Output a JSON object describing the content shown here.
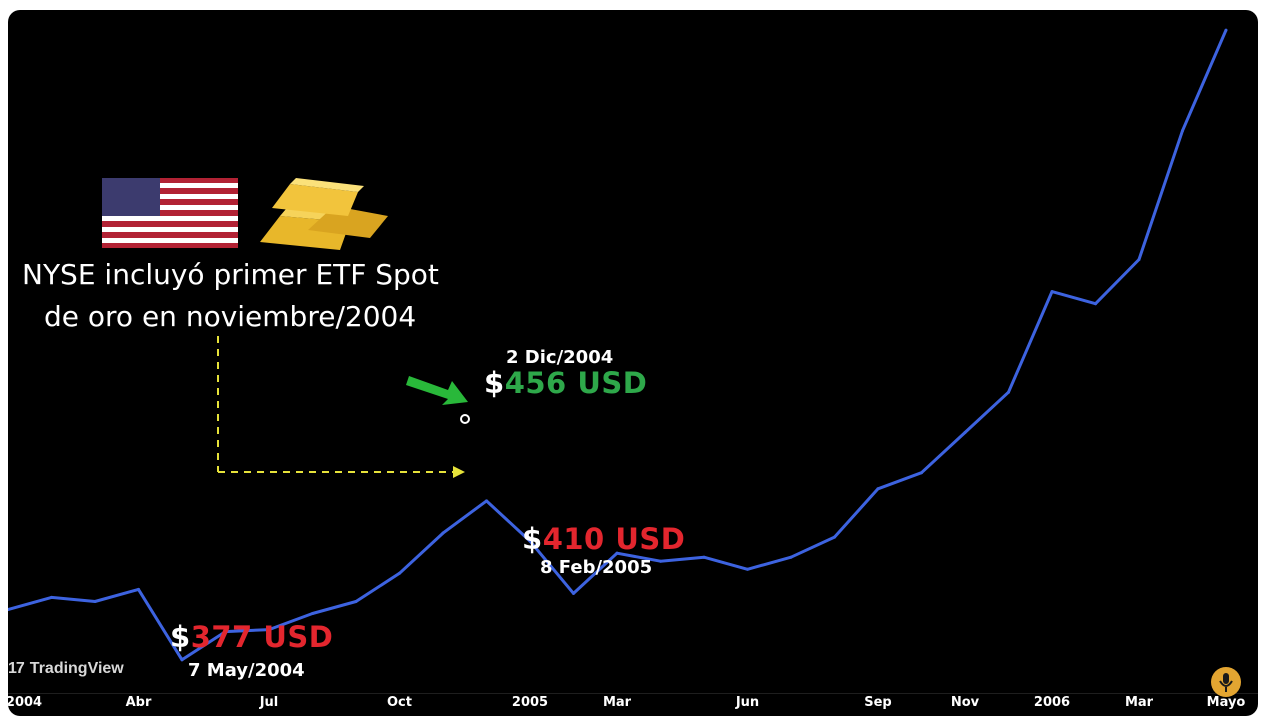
{
  "caption": {
    "line1": "NYSE incluyó primer ETF Spot",
    "line2": "de oro en noviembre/2004"
  },
  "annotations": {
    "high": {
      "date": "2 Dic/2004",
      "currency": "$",
      "amount": "456 USD",
      "color": "#2ea84a"
    },
    "low1": {
      "date": "7 May/2004",
      "currency": "$",
      "amount": "377 USD",
      "color": "#e3262e"
    },
    "low2": {
      "date": "8 Feb/2005",
      "currency": "$",
      "amount": "410 USD",
      "color": "#e3262e"
    }
  },
  "watermark": {
    "text": "TradingView",
    "mark": "17"
  },
  "icons": {
    "flag": "us-flag-icon",
    "gold": "gold-bars-icon",
    "arrow": "green-arrow-icon",
    "podcast": "podcast-mic-icon"
  },
  "colors": {
    "line": "#3d63e0",
    "background": "#000000",
    "connector": "#e6e23a"
  },
  "chart_data": {
    "type": "line",
    "title": "",
    "xlabel": "",
    "ylabel": "",
    "x_ticks": [
      "2004",
      "Abr",
      "Jul",
      "Oct",
      "2005",
      "Mar",
      "Jun",
      "Sep",
      "Nov",
      "2006",
      "Mar",
      "Mayo"
    ],
    "x": [
      "2004-01",
      "2004-02",
      "2004-03",
      "2004-04",
      "2004-05",
      "2004-06",
      "2004-07",
      "2004-08",
      "2004-09",
      "2004-10",
      "2004-11",
      "2004-12",
      "2005-01",
      "2005-02",
      "2005-03",
      "2005-04",
      "2005-05",
      "2005-06",
      "2005-07",
      "2005-08",
      "2005-09",
      "2005-10",
      "2005-11",
      "2005-12",
      "2006-01",
      "2006-02",
      "2006-03",
      "2006-04",
      "2006-05"
    ],
    "series": [
      {
        "values": [
          402,
          408,
          406,
          412,
          377,
          391,
          392,
          400,
          406,
          420,
          440,
          456,
          436,
          410,
          430,
          426,
          428,
          422,
          428,
          438,
          462,
          470,
          490,
          510,
          560,
          554,
          576,
          640,
          690
        ]
      }
    ],
    "ylim": [
      360,
      700
    ],
    "grid": false
  }
}
